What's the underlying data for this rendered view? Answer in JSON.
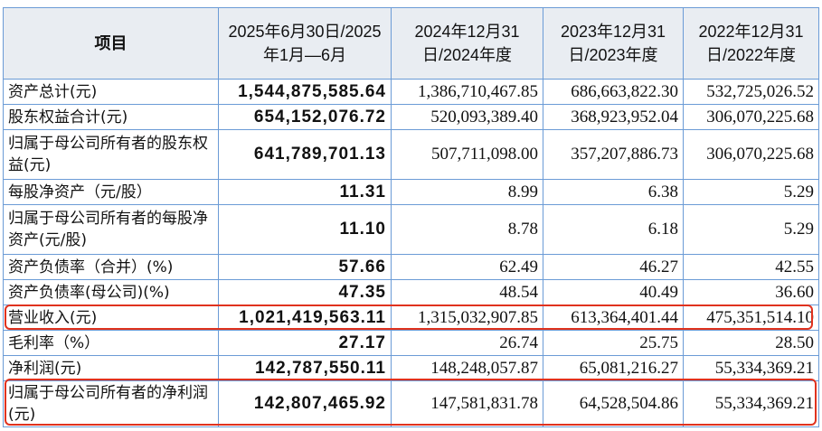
{
  "table": {
    "headers": [
      "项目",
      "2025年6月30日/2025年1月—6月",
      "2024年12月31日/2024年度",
      "2023年12月31日/2023年度",
      "2022年12月31日/2022年度"
    ],
    "rows": [
      {
        "label": "资产总计(元)",
        "values": [
          "1,544,875,585.64",
          "1,386,710,467.85",
          "686,663,822.30",
          "532,725,026.52"
        ]
      },
      {
        "label": "股东权益合计(元)",
        "values": [
          "654,152,076.72",
          "520,093,389.40",
          "368,923,952.04",
          "306,070,225.68"
        ]
      },
      {
        "label": "归属于母公司所有者的股东权益(元)",
        "values": [
          "641,789,701.13",
          "507,711,098.00",
          "357,207,886.73",
          "306,070,225.68"
        ]
      },
      {
        "label": "每股净资产（元/股）",
        "values": [
          "11.31",
          "8.99",
          "6.38",
          "5.29"
        ]
      },
      {
        "label": "归属于母公司所有者的每股净资产(元/股)",
        "values": [
          "11.10",
          "8.78",
          "6.18",
          "5.29"
        ]
      },
      {
        "label": "资产负债率（合并）(%)",
        "values": [
          "57.66",
          "62.49",
          "46.27",
          "42.55"
        ]
      },
      {
        "label": "资产负债率(母公司)(%)",
        "values": [
          "47.35",
          "48.54",
          "40.49",
          "36.60"
        ]
      },
      {
        "label": "营业收入(元)",
        "values": [
          "1,021,419,563.11",
          "1,315,032,907.85",
          "613,364,401.44",
          "475,351,514.10"
        ],
        "highlighted": true
      },
      {
        "label": "毛利率（%）",
        "values": [
          "27.17",
          "26.74",
          "25.75",
          "28.50"
        ]
      },
      {
        "label": "净利润(元)",
        "values": [
          "142,787,550.11",
          "148,248,057.87",
          "65,081,216.27",
          "55,334,369.21"
        ]
      },
      {
        "label": "归属于母公司所有者的净利润(元)",
        "values": [
          "142,807,465.92",
          "147,581,831.78",
          "64,528,504.86",
          "55,334,369.21"
        ],
        "highlighted": true
      }
    ]
  },
  "colors": {
    "border": "#6b9bd6",
    "header_bg": "#e9edf2",
    "highlight": "#e0321e"
  }
}
